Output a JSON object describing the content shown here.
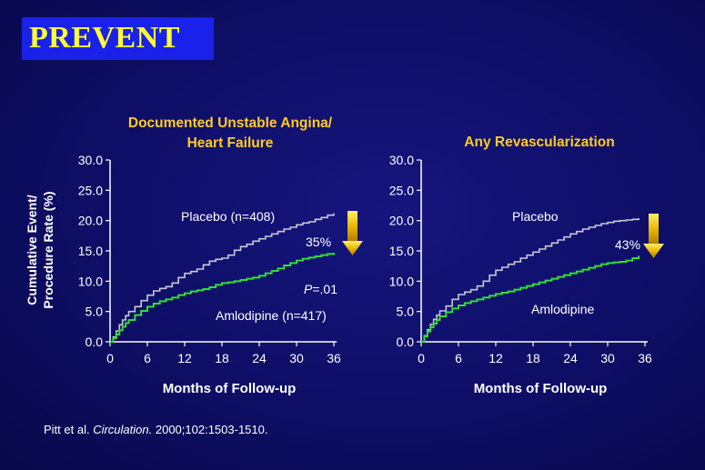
{
  "slide": {
    "title": "PREVENT",
    "citation": {
      "authors": "Pitt et al.",
      "journal": "Circulation.",
      "details": "2000;102:1503-1510."
    }
  },
  "colors": {
    "background": "#0e0e66",
    "title_box": "#1a21e8",
    "title_text": "#ffff33",
    "panel_title": "#ffcc22",
    "placebo": "#c9c9d6",
    "amlodipine": "#33dd33",
    "arrow": "#e8b800",
    "text": "#ffffff"
  },
  "chart_data": [
    {
      "type": "line",
      "title": "Documented Unstable Angina/\nHeart Failure",
      "ylabel": "Cumulative Event/\nProcedure Rate (%)",
      "xlabel": "Months of Follow-up",
      "xlim": [
        0,
        36
      ],
      "ylim": [
        0,
        30
      ],
      "xticks": [
        "0",
        "6",
        "12",
        "18",
        "24",
        "30",
        "36"
      ],
      "yticks": [
        "0.0",
        "5.0",
        "10.0",
        "15.0",
        "20.0",
        "25.0",
        "30.0"
      ],
      "series": [
        {
          "name": "Placebo (n=408)",
          "x": [
            0,
            0.5,
            1,
            1.5,
            2,
            2.5,
            3,
            4,
            5,
            6,
            7,
            8,
            9,
            10,
            11,
            12,
            13,
            14,
            15,
            16,
            17,
            18,
            19,
            20,
            21,
            22,
            23,
            24,
            25,
            26,
            27,
            28,
            29,
            30,
            31,
            32,
            33,
            34,
            35,
            36
          ],
          "y": [
            0,
            0.8,
            1.8,
            2.8,
            3.6,
            4.3,
            5.0,
            5.8,
            6.8,
            7.7,
            8.4,
            8.8,
            9.1,
            9.7,
            10.6,
            11.3,
            11.6,
            12.0,
            12.7,
            13.3,
            13.6,
            13.8,
            14.3,
            15.1,
            15.7,
            16.1,
            16.6,
            17.0,
            17.4,
            17.8,
            18.2,
            18.6,
            18.9,
            19.3,
            19.6,
            19.8,
            20.2,
            20.5,
            20.9,
            21.2
          ]
        },
        {
          "name": "Amlodipine (n=417)",
          "x": [
            0,
            0.5,
            1,
            1.5,
            2,
            2.5,
            3,
            4,
            5,
            6,
            7,
            8,
            9,
            10,
            11,
            12,
            13,
            14,
            15,
            16,
            17,
            18,
            19,
            20,
            21,
            22,
            23,
            24,
            25,
            26,
            27,
            28,
            29,
            30,
            31,
            32,
            33,
            34,
            35,
            36
          ],
          "y": [
            0,
            0.6,
            1.2,
            1.9,
            2.5,
            3.1,
            3.6,
            4.4,
            5.1,
            5.8,
            6.3,
            6.7,
            7.0,
            7.3,
            7.7,
            8.0,
            8.3,
            8.5,
            8.7,
            9.0,
            9.4,
            9.7,
            9.8,
            10.0,
            10.2,
            10.4,
            10.6,
            10.9,
            11.3,
            11.7,
            12.1,
            12.6,
            13.0,
            13.4,
            13.7,
            13.9,
            14.1,
            14.3,
            14.5,
            14.7
          ]
        }
      ],
      "annotations": {
        "reduction": "35%",
        "p_value_prefix": "P",
        "p_value_rest": "=.01"
      }
    },
    {
      "type": "line",
      "title": "Any Revascularization",
      "xlabel": "Months of Follow-up",
      "xlim": [
        0,
        36
      ],
      "ylim": [
        0,
        30
      ],
      "xticks": [
        "0",
        "6",
        "12",
        "18",
        "24",
        "30",
        "36"
      ],
      "yticks": [
        "0.0",
        "5.0",
        "10.0",
        "15.0",
        "20.0",
        "25.0",
        "30.0"
      ],
      "series": [
        {
          "name": "Placebo",
          "x": [
            0,
            0.5,
            1,
            1.5,
            2,
            2.5,
            3,
            4,
            5,
            6,
            7,
            8,
            9,
            10,
            11,
            12,
            13,
            14,
            15,
            16,
            17,
            18,
            19,
            20,
            21,
            22,
            23,
            24,
            25,
            26,
            27,
            28,
            29,
            30,
            31,
            32,
            33,
            34,
            35
          ],
          "y": [
            0,
            1.0,
            2.0,
            2.9,
            3.7,
            4.4,
            5.1,
            5.9,
            7.0,
            7.8,
            8.2,
            8.6,
            9.2,
            10.0,
            11.0,
            11.8,
            12.3,
            12.8,
            13.2,
            13.8,
            14.3,
            14.8,
            15.3,
            15.8,
            16.3,
            16.8,
            17.3,
            17.8,
            18.2,
            18.6,
            18.9,
            19.2,
            19.5,
            19.7,
            19.9,
            20.0,
            20.1,
            20.2,
            20.4
          ]
        },
        {
          "name": "Amlodipine",
          "x": [
            0,
            0.5,
            1,
            1.5,
            2,
            2.5,
            3,
            4,
            5,
            6,
            7,
            8,
            9,
            10,
            11,
            12,
            13,
            14,
            15,
            16,
            17,
            18,
            19,
            20,
            21,
            22,
            23,
            24,
            25,
            26,
            27,
            28,
            29,
            30,
            31,
            32,
            33,
            34,
            35
          ],
          "y": [
            0,
            0.9,
            1.7,
            2.4,
            3.0,
            3.6,
            4.2,
            4.9,
            5.5,
            6.0,
            6.4,
            6.7,
            7.0,
            7.3,
            7.6,
            7.9,
            8.1,
            8.3,
            8.6,
            8.9,
            9.2,
            9.5,
            9.8,
            10.1,
            10.4,
            10.7,
            11.0,
            11.3,
            11.6,
            11.9,
            12.2,
            12.5,
            12.8,
            13.0,
            13.1,
            13.2,
            13.4,
            13.8,
            14.2
          ]
        }
      ],
      "annotations": {
        "reduction": "43%"
      }
    }
  ]
}
